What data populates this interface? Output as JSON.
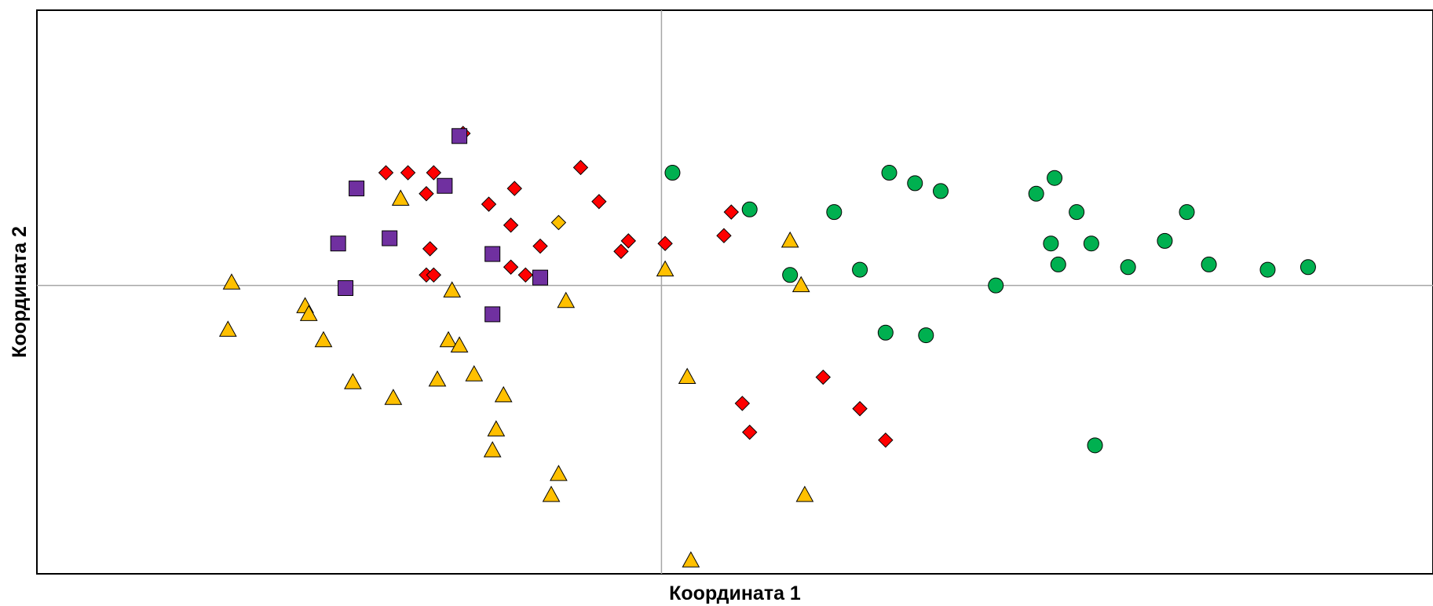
{
  "chart_data": {
    "type": "scatter",
    "xlabel": "Координата 1",
    "ylabel": "Координата 2",
    "xlim": [
      -1.7,
      2.1
    ],
    "ylim": [
      -1.1,
      1.05
    ],
    "grid": false,
    "reference_lines": {
      "x": 0,
      "y": 0
    },
    "series": [
      {
        "marker": "diamond",
        "color": "#ff0000",
        "points": [
          [
            -0.75,
            0.43
          ],
          [
            -0.69,
            0.43
          ],
          [
            -0.54,
            0.58
          ],
          [
            -0.63,
            0.14
          ],
          [
            -0.62,
            0.43
          ],
          [
            -0.64,
            0.04
          ],
          [
            -0.62,
            0.04
          ],
          [
            -0.64,
            0.35
          ],
          [
            -0.22,
            0.45
          ],
          [
            -0.4,
            0.37
          ],
          [
            -0.47,
            0.31
          ],
          [
            -0.41,
            0.07
          ],
          [
            -0.41,
            0.23
          ],
          [
            -0.37,
            0.04
          ],
          [
            -0.33,
            0.15
          ],
          [
            -0.17,
            0.32
          ],
          [
            -0.11,
            0.13
          ],
          [
            -0.09,
            0.17
          ],
          [
            0.01,
            0.16
          ],
          [
            0.17,
            0.19
          ],
          [
            0.19,
            0.28
          ],
          [
            0.44,
            -0.35
          ],
          [
            0.22,
            -0.45
          ],
          [
            0.24,
            -0.56
          ],
          [
            0.54,
            -0.47
          ],
          [
            0.61,
            -0.59
          ]
        ]
      },
      {
        "marker": "square",
        "color": "#7030a0",
        "points": [
          [
            -0.88,
            0.16
          ],
          [
            -0.83,
            0.37
          ],
          [
            -0.86,
            -0.01
          ],
          [
            -0.74,
            0.18
          ],
          [
            -0.55,
            0.57
          ],
          [
            -0.59,
            0.38
          ],
          [
            -0.46,
            0.12
          ],
          [
            -0.33,
            0.03
          ],
          [
            -0.46,
            -0.11
          ]
        ]
      },
      {
        "marker": "triangle",
        "color": "#ffc000",
        "points": [
          [
            -1.17,
            0.01
          ],
          [
            -1.18,
            -0.17
          ],
          [
            -0.97,
            -0.08
          ],
          [
            -0.96,
            -0.11
          ],
          [
            -0.92,
            -0.21
          ],
          [
            -0.84,
            -0.37
          ],
          [
            -0.71,
            0.33
          ],
          [
            -0.73,
            -0.43
          ],
          [
            -0.61,
            -0.36
          ],
          [
            -0.57,
            -0.02
          ],
          [
            -0.58,
            -0.21
          ],
          [
            -0.55,
            -0.23
          ],
          [
            -0.51,
            -0.34
          ],
          [
            -0.43,
            -0.42
          ],
          [
            -0.45,
            -0.55
          ],
          [
            -0.46,
            -0.63
          ],
          [
            -0.26,
            -0.06
          ],
          [
            -0.28,
            -0.72
          ],
          [
            -0.3,
            -0.8
          ],
          [
            0.01,
            0.06
          ],
          [
            0.07,
            -0.35
          ],
          [
            0.08,
            -1.05
          ],
          [
            0.35,
            0.17
          ],
          [
            0.38,
            0.0
          ],
          [
            0.39,
            -0.8
          ]
        ]
      },
      {
        "marker": "diamond",
        "color": "#ffc000",
        "points": [
          [
            -0.28,
            0.24
          ]
        ]
      },
      {
        "marker": "circle",
        "color": "#00b050",
        "points": [
          [
            0.03,
            0.43
          ],
          [
            0.24,
            0.29
          ],
          [
            0.35,
            0.04
          ],
          [
            0.47,
            0.28
          ],
          [
            0.54,
            0.06
          ],
          [
            0.62,
            0.43
          ],
          [
            0.69,
            0.39
          ],
          [
            0.76,
            0.36
          ],
          [
            0.61,
            -0.18
          ],
          [
            0.72,
            -0.19
          ],
          [
            0.91,
            0.0
          ],
          [
            1.02,
            0.35
          ],
          [
            1.07,
            0.41
          ],
          [
            1.13,
            0.28
          ],
          [
            1.06,
            0.16
          ],
          [
            1.08,
            0.08
          ],
          [
            1.17,
            0.16
          ],
          [
            1.27,
            0.07
          ],
          [
            1.37,
            0.17
          ],
          [
            1.43,
            0.28
          ],
          [
            1.49,
            0.08
          ],
          [
            1.65,
            0.06
          ],
          [
            1.76,
            0.07
          ],
          [
            1.18,
            -0.61
          ]
        ]
      }
    ]
  }
}
